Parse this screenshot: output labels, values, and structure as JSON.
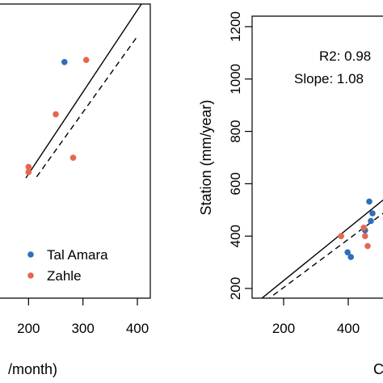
{
  "colors": {
    "tal_amara": "#2f6fba",
    "zahle": "#e8654f",
    "line": "#000000"
  },
  "chart_data": [
    {
      "type": "scatter",
      "xlim": [
        -140,
        420
      ],
      "ylim": [
        -150,
        560
      ],
      "x_ticks": [
        100,
        200,
        300,
        400
      ],
      "x_tick_labels": [
        "",
        "200",
        "300",
        "400"
      ],
      "y_ticks": [],
      "xlabel": "/month)",
      "ylabel": "",
      "legend": {
        "placement": "bottom-right",
        "entries": [
          {
            "name": "Tal Amara",
            "color_key": "tal_amara"
          },
          {
            "name": "Zahle",
            "color_key": "zahle"
          }
        ]
      },
      "series": [
        {
          "name": "Tal Amara",
          "color_key": "tal_amara",
          "points": [
            [
              266,
              420
            ]
          ]
        },
        {
          "name": "Zahle",
          "color_key": "zahle",
          "points": [
            [
              306,
              425
            ],
            [
              250,
              294
            ],
            [
              282,
              189
            ],
            [
              200,
              167
            ],
            [
              200,
              154
            ]
          ]
        }
      ],
      "lines": [
        {
          "style": "solid",
          "from": [
            195,
            140
          ],
          "to": [
            420,
            585
          ]
        },
        {
          "style": "dashed",
          "from": [
            215,
            143
          ],
          "to": [
            400,
            482
          ]
        }
      ]
    },
    {
      "type": "scatter",
      "xlim": [
        150,
        620
      ],
      "ylim": [
        180,
        1280
      ],
      "x_ticks": [
        200,
        400
      ],
      "x_tick_labels": [
        "200",
        "400"
      ],
      "y_ticks": [
        200,
        400,
        600,
        800,
        1000,
        1200
      ],
      "y_tick_labels": [
        "200",
        "400",
        "600",
        "800",
        "1000",
        "1200"
      ],
      "xlabel": "C",
      "ylabel": "Station (mm/year)",
      "annotations": [
        "R2: 0.98",
        "Slope: 1.08"
      ],
      "series": [
        {
          "name": "Tal Amara",
          "color_key": "tal_amara",
          "points": [
            [
              465,
              532
            ],
            [
              475,
              487
            ],
            [
              470,
              458
            ],
            [
              452,
              422
            ],
            [
              398,
              338
            ],
            [
              408,
              320
            ]
          ]
        },
        {
          "name": "Zahle",
          "color_key": "zahle",
          "points": [
            [
              378,
              400
            ],
            [
              448,
              432
            ],
            [
              452,
              400
            ],
            [
              460,
              362
            ]
          ]
        }
      ],
      "lines": [
        {
          "style": "solid",
          "from": [
            120,
            150
          ],
          "to": [
            620,
            650
          ]
        },
        {
          "style": "dashed",
          "from": [
            120,
            130
          ],
          "to": [
            620,
            590
          ]
        }
      ]
    }
  ]
}
